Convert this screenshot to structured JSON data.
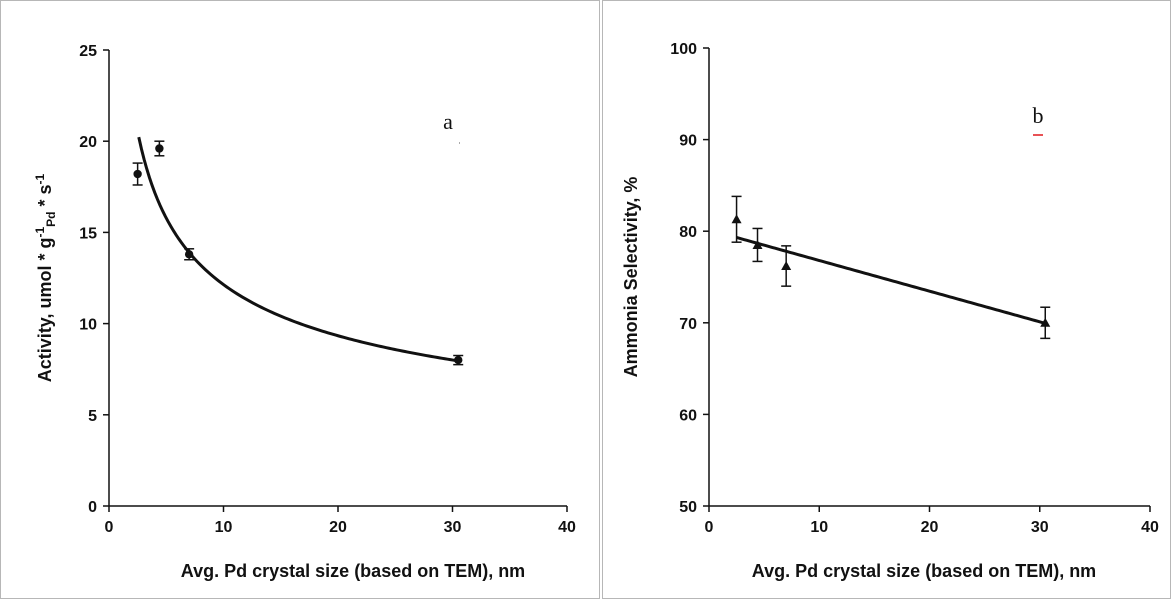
{
  "chart_data": [
    {
      "type": "scatter",
      "panel_label": "a",
      "xlabel": "Avg. Pd crystal size (based on TEM), nm",
      "ylabel_parts": [
        "Activity, umol * g",
        "-1",
        "Pd",
        " * s",
        "-1"
      ],
      "xlim": [
        0,
        40
      ],
      "ylim": [
        0,
        25
      ],
      "xticks": [
        0,
        10,
        20,
        30,
        40
      ],
      "yticks": [
        0,
        5,
        10,
        15,
        20,
        25
      ],
      "marker": "circle",
      "points": [
        {
          "x": 2.5,
          "y": 18.2,
          "err": 0.6
        },
        {
          "x": 4.4,
          "y": 19.6,
          "err": 0.4
        },
        {
          "x": 7.0,
          "y": 13.8,
          "err": 0.3
        },
        {
          "x": 30.5,
          "y": 8.0,
          "err": 0.25
        }
      ],
      "fit": {
        "kind": "power",
        "a": 29.05,
        "b": -0.379,
        "x_range": [
          2.6,
          30.5
        ]
      },
      "grid": false
    },
    {
      "type": "scatter",
      "panel_label": "b",
      "xlabel": "Avg. Pd crystal size (based on TEM), nm",
      "ylabel_parts": [
        "Ammonia Selectivity,  %"
      ],
      "xlim": [
        0,
        40
      ],
      "ylim": [
        50,
        100
      ],
      "xticks": [
        0,
        10,
        20,
        30,
        40
      ],
      "yticks": [
        50,
        60,
        70,
        80,
        90,
        100
      ],
      "marker": "triangle",
      "points": [
        {
          "x": 2.5,
          "y": 81.3,
          "err": 2.5
        },
        {
          "x": 4.4,
          "y": 78.5,
          "err": 1.8
        },
        {
          "x": 7.0,
          "y": 76.2,
          "err": 2.2
        },
        {
          "x": 30.5,
          "y": 70.0,
          "err": 1.7
        }
      ],
      "fit": {
        "kind": "linear",
        "m": -0.3348,
        "c": 80.15,
        "x_range": [
          2.5,
          30.5
        ]
      },
      "grid": false
    }
  ],
  "colors": {
    "ink": "#111111",
    "frame": "#b7b7b7",
    "red_mark": "#e0191c"
  }
}
